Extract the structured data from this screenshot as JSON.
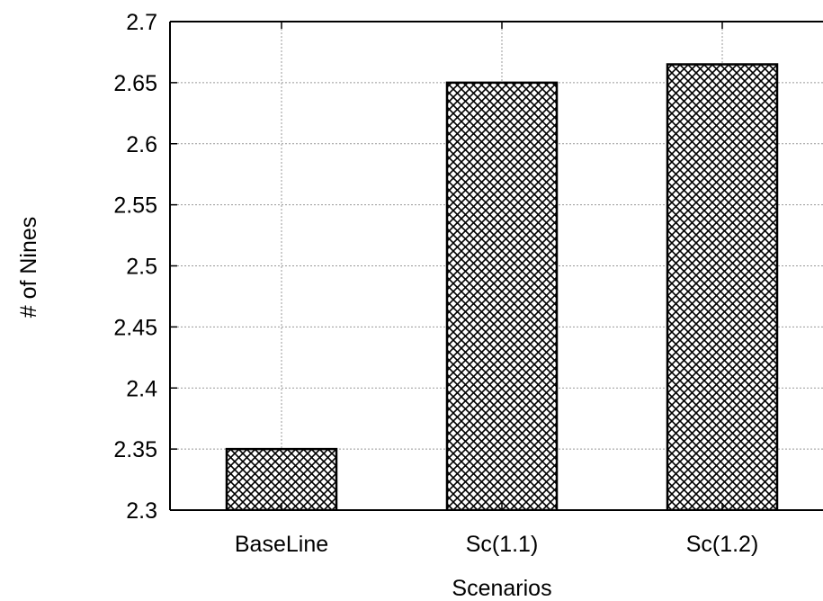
{
  "chart_data": {
    "type": "bar",
    "title": "",
    "xlabel": "Scenarios",
    "ylabel": "# of Nines",
    "categories": [
      "BaseLine",
      "Sc(1.1)",
      "Sc(1.2)"
    ],
    "values": [
      2.35,
      2.65,
      2.665
    ],
    "ylim": [
      2.3,
      2.7
    ],
    "yticks": [
      "2.3",
      "2.35",
      "2.4",
      "2.45",
      "2.5",
      "2.55",
      "2.6",
      "2.65",
      "2.7"
    ],
    "grid": true,
    "bar_pattern": "crosshatch",
    "colors": {
      "bar_fill": "#ffffff",
      "bar_pattern": "#000000",
      "grid": "#999999",
      "axis": "#000000"
    }
  }
}
